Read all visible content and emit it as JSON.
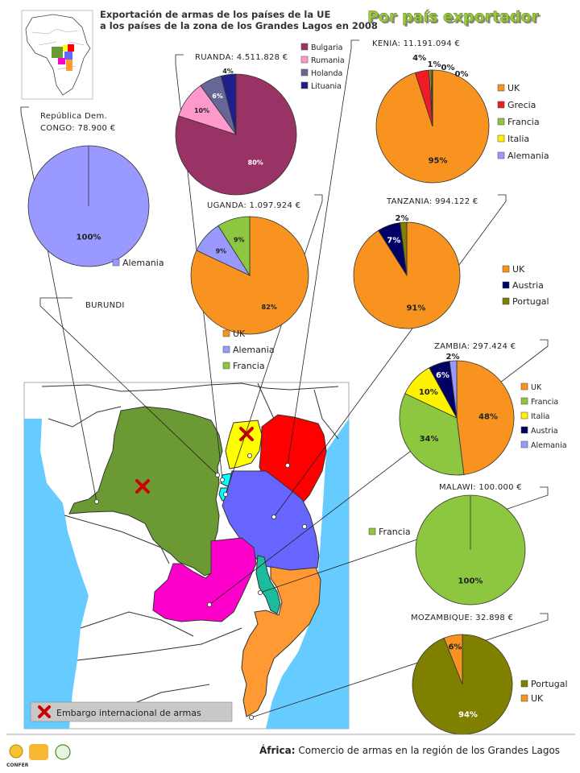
{
  "header": {
    "title_line1": "Exportación de armas de los países de la UE",
    "title_line2": "a los países de la zona de los Grandes Lagos en 2008",
    "badge": "Por país exportador"
  },
  "footer": {
    "caption_prefix": "África:",
    "caption_text": " Comercio de armas en la región de los Grandes Lagos",
    "logo_confer": "CONFER"
  },
  "map_legend": {
    "embargo_label": "Embargo internacional de armas"
  },
  "colors": {
    "UK": "#f7931e",
    "Grecia": "#ee1c25",
    "Francia": "#8dc63f",
    "Italia": "#fff200",
    "Alemania": "#9999ff",
    "Bulgaria": "#993366",
    "Rumania": "#ff99cc",
    "Holanda": "#666699",
    "Lituania": "#1f1f8c",
    "Austria": "#000066",
    "Portugal": "#808000",
    "drc": "#6b9a35",
    "uganda": "#ffff00",
    "kenya": "#ff0000",
    "tanzania": "#6666ff",
    "rwanda": "#00ffff",
    "zambia": "#ff00cc",
    "malawi": "#1abc9c",
    "mozambique": "#ff9933",
    "ocean": "#66ccff"
  },
  "charts": [
    {
      "id": "rdcongo",
      "title_line1": "República Dem.",
      "title_line2": "CONGO: 78.900 €",
      "slices": [
        {
          "name": "Alemania",
          "value": 100,
          "label": "100%"
        }
      ],
      "legend": [
        "Alemania"
      ]
    },
    {
      "id": "burundi",
      "title_line1": "BURUNDI",
      "slices": [],
      "legend": []
    },
    {
      "id": "ruanda",
      "title_line1": "RUANDA: 4.511.828 €",
      "slices": [
        {
          "name": "Bulgaria",
          "value": 80,
          "label": "80%"
        },
        {
          "name": "Rumania",
          "value": 10,
          "label": "10%"
        },
        {
          "name": "Holanda",
          "value": 6,
          "label": "6%"
        },
        {
          "name": "Lituania",
          "value": 4,
          "label": "4%"
        }
      ],
      "legend": [
        "Bulgaria",
        "Rumania",
        "Holanda",
        "Lituania"
      ]
    },
    {
      "id": "uganda",
      "title_line1": "UGANDA: 1.097.924 €",
      "slices": [
        {
          "name": "UK",
          "value": 82,
          "label": "82%"
        },
        {
          "name": "Alemania",
          "value": 9,
          "label": "9%"
        },
        {
          "name": "Francia",
          "value": 9,
          "label": "9%"
        }
      ],
      "legend": [
        "UK",
        "Alemania",
        "Francia"
      ]
    },
    {
      "id": "kenia",
      "title_line1": "KENIA: 11.191.094 €",
      "slices": [
        {
          "name": "UK",
          "value": 95,
          "label": "95%"
        },
        {
          "name": "Grecia",
          "value": 4,
          "label": "4%"
        },
        {
          "name": "Francia",
          "value": 0.5,
          "label": "1%"
        },
        {
          "name": "Italia",
          "value": 0.3,
          "label": "0%"
        },
        {
          "name": "Alemania",
          "value": 0.2,
          "label": "0%"
        }
      ],
      "legend": [
        "UK",
        "Grecia",
        "Francia",
        "Italia",
        "Alemania"
      ]
    },
    {
      "id": "tanzania",
      "title_line1": "TANZANIA: 994.122 €",
      "slices": [
        {
          "name": "UK",
          "value": 91,
          "label": "91%"
        },
        {
          "name": "Austria",
          "value": 7,
          "label": "7%"
        },
        {
          "name": "Portugal",
          "value": 2,
          "label": "2%"
        }
      ],
      "legend": [
        "UK",
        "Austria",
        "Portugal"
      ]
    },
    {
      "id": "zambia",
      "title_line1": "ZAMBIA: 297.424 €",
      "slices": [
        {
          "name": "UK",
          "value": 48,
          "label": "48%"
        },
        {
          "name": "Francia",
          "value": 34,
          "label": "34%"
        },
        {
          "name": "Italia",
          "value": 10,
          "label": "10%"
        },
        {
          "name": "Austria",
          "value": 6,
          "label": "6%"
        },
        {
          "name": "Alemania",
          "value": 2,
          "label": "2%"
        }
      ],
      "legend": [
        "UK",
        "Francia",
        "Italia",
        "Austria",
        "Alemania"
      ]
    },
    {
      "id": "malawi",
      "title_line1": "MALAWI: 100.000 €",
      "slices": [
        {
          "name": "Francia",
          "value": 100,
          "label": "100%"
        }
      ],
      "legend": [
        "Francia"
      ]
    },
    {
      "id": "mozambique",
      "title_line1": "MOZAMBIQUE: 32.898 €",
      "slices": [
        {
          "name": "Portugal",
          "value": 94,
          "label": "94%"
        },
        {
          "name": "UK",
          "value": 6,
          "label": "6%"
        }
      ],
      "legend": [
        "Portugal",
        "UK"
      ]
    }
  ]
}
